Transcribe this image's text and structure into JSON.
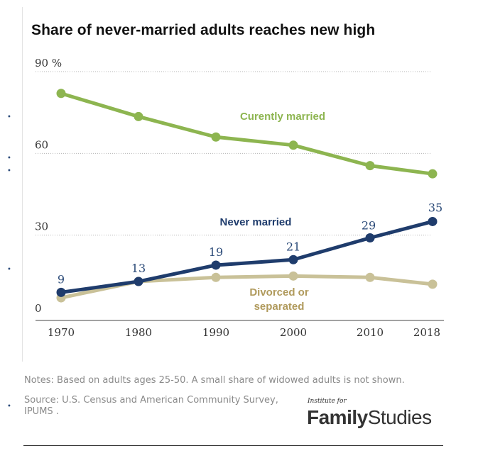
{
  "chart_data": {
    "type": "line",
    "title": "Share of never-married adults reaches new high",
    "x": [
      1970,
      1980,
      1990,
      2000,
      2010,
      2018
    ],
    "x_tick_labels": [
      "1970",
      "1980",
      "1990",
      "2000",
      "2010",
      "2018"
    ],
    "y_ticks": [
      0,
      30,
      60,
      90
    ],
    "y_tick_labels": [
      "0",
      "30",
      "60",
      "90 %"
    ],
    "ylim": [
      0,
      90
    ],
    "grid": true,
    "series": [
      {
        "name": "Curently married",
        "color": "#8db550",
        "values": [
          82,
          73.5,
          66,
          63,
          55.5,
          52.5
        ]
      },
      {
        "name": "Never married",
        "color": "#1f3c6c",
        "values": [
          9,
          13,
          19,
          21,
          29,
          35
        ],
        "data_labels": [
          "9",
          "13",
          "19",
          "21",
          "29",
          "35"
        ]
      },
      {
        "name": "Divorced or separated",
        "name_lines": [
          "Divorced or",
          "separated"
        ],
        "color": "#c9c198",
        "label_color": "#b09a5c",
        "values": [
          7,
          13,
          14.5,
          15,
          14.5,
          12
        ]
      }
    ]
  },
  "notes": "Notes: Based on adults ages 25-50. A small share of widowed adults is not shown.",
  "source": "Source: U.S. Census and American Community Survey, IPUMS .",
  "logo": {
    "small": "Institute for",
    "bold": "Family",
    "light": "Studies"
  }
}
